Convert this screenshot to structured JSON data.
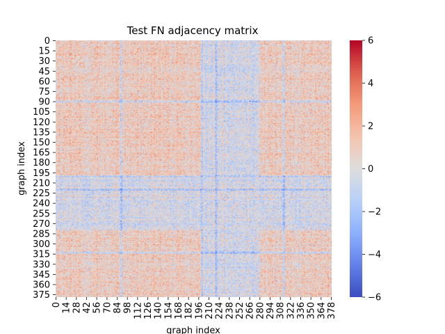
{
  "chart_data": {
    "type": "heatmap",
    "title": "Test FN adjacency matrix",
    "xlabel": "graph index",
    "ylabel": "graph index",
    "size": 379,
    "x_ticks": [
      0,
      14,
      28,
      42,
      56,
      70,
      84,
      98,
      112,
      126,
      140,
      154,
      168,
      182,
      196,
      210,
      224,
      238,
      252,
      266,
      280,
      294,
      308,
      322,
      336,
      350,
      364,
      378
    ],
    "y_ticks": [
      0,
      15,
      30,
      45,
      60,
      75,
      90,
      105,
      120,
      135,
      150,
      165,
      180,
      195,
      210,
      225,
      240,
      255,
      270,
      285,
      300,
      315,
      330,
      345,
      360,
      375
    ],
    "colorbar": {
      "colormap": "coolwarm",
      "vmin": -6,
      "vmax": 6,
      "ticks": [
        -6,
        -4,
        -2,
        0,
        2,
        4,
        6
      ],
      "tick_labels": [
        "−6",
        "−4",
        "−2",
        "0",
        "2",
        "4",
        "6"
      ]
    },
    "block_structure": {
      "positive_blocks": [
        [
          0,
          200
        ],
        [
          280,
          379
        ]
      ],
      "negative_bands": [
        90,
        200,
        220,
        313
      ],
      "noise_level": 1.1
    }
  }
}
